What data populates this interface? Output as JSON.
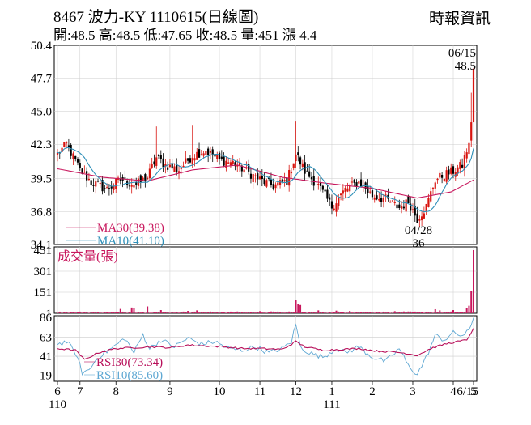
{
  "header": {
    "title": "8467  波力-KY 1110615(日線圖)",
    "ohlc": "開:48.5 高:48.5 低:47.65 收:48.5 量:451 漲 4.4",
    "source": "時報資訊"
  },
  "colors": {
    "up": "#d8140f",
    "down": "#000000",
    "ma30": "#c8175d",
    "ma10": "#2e8fb8",
    "rsi30": "#b80f5a",
    "rsi10": "#5fa8d3",
    "volume": "#c8175d",
    "volume_label": "#c8175d",
    "grid": "#cccccc"
  },
  "chart_data": [
    {
      "type": "candlestick",
      "yticks": [
        "50.4",
        "47.7",
        "45.0",
        "42.3",
        "39.5",
        "36.8",
        "34.1"
      ],
      "ylim": [
        34.1,
        50.4
      ],
      "legend": {
        "ma30": "MA30(39.38)",
        "ma10": "MA10(41.10)"
      },
      "annotations": {
        "last_date": "06/15",
        "last_price": "48.5",
        "low_date": "04/28",
        "low_price": "36"
      },
      "anchors": [
        {
          "i": 0,
          "c": 41.5
        },
        {
          "i": 4,
          "c": 42.3
        },
        {
          "i": 10,
          "c": 40.2
        },
        {
          "i": 15,
          "c": 39.2
        },
        {
          "i": 22,
          "c": 38.6
        },
        {
          "i": 28,
          "c": 39.4
        },
        {
          "i": 35,
          "c": 39.0
        },
        {
          "i": 40,
          "c": 39.6
        },
        {
          "i": 44,
          "c": 41.2
        },
        {
          "i": 48,
          "c": 40.6
        },
        {
          "i": 54,
          "c": 40.2
        },
        {
          "i": 60,
          "c": 41.4
        },
        {
          "i": 66,
          "c": 41.8
        },
        {
          "i": 72,
          "c": 41.0
        },
        {
          "i": 78,
          "c": 40.8
        },
        {
          "i": 84,
          "c": 40.1
        },
        {
          "i": 90,
          "c": 39.4
        },
        {
          "i": 96,
          "c": 38.9
        },
        {
          "i": 102,
          "c": 39.3
        },
        {
          "i": 106,
          "c": 41.5
        },
        {
          "i": 110,
          "c": 40.1
        },
        {
          "i": 116,
          "c": 38.9
        },
        {
          "i": 122,
          "c": 37.2
        },
        {
          "i": 128,
          "c": 38.6
        },
        {
          "i": 134,
          "c": 39.2
        },
        {
          "i": 140,
          "c": 38.1
        },
        {
          "i": 146,
          "c": 37.8
        },
        {
          "i": 152,
          "c": 37.1
        },
        {
          "i": 156,
          "c": 37.6
        },
        {
          "i": 160,
          "c": 36.2
        },
        {
          "i": 164,
          "c": 37.2
        },
        {
          "i": 168,
          "c": 39.4
        },
        {
          "i": 172,
          "c": 39.8
        },
        {
          "i": 176,
          "c": 40.1
        },
        {
          "i": 180,
          "c": 40.6
        },
        {
          "i": 183,
          "c": 42.4
        },
        {
          "i": 184,
          "c": 44.1
        },
        {
          "i": 185,
          "c": 48.5
        }
      ],
      "ma30_anchors": [
        {
          "i": 0,
          "c": 40.3
        },
        {
          "i": 20,
          "c": 39.6
        },
        {
          "i": 40,
          "c": 39.3
        },
        {
          "i": 60,
          "c": 40.2
        },
        {
          "i": 80,
          "c": 40.6
        },
        {
          "i": 100,
          "c": 39.6
        },
        {
          "i": 120,
          "c": 39.1
        },
        {
          "i": 140,
          "c": 38.7
        },
        {
          "i": 160,
          "c": 37.9
        },
        {
          "i": 175,
          "c": 38.4
        },
        {
          "i": 185,
          "c": 39.38
        }
      ]
    },
    {
      "type": "bar",
      "title": "成交量(張)",
      "yticks": [
        "451",
        "301",
        "151",
        "1"
      ],
      "ylim": [
        1,
        451
      ],
      "spikes": [
        {
          "i": 28,
          "v": 32
        },
        {
          "i": 33,
          "v": 42
        },
        {
          "i": 34,
          "v": 38
        },
        {
          "i": 40,
          "v": 50
        },
        {
          "i": 46,
          "v": 24
        },
        {
          "i": 58,
          "v": 18
        },
        {
          "i": 62,
          "v": 22
        },
        {
          "i": 90,
          "v": 16
        },
        {
          "i": 95,
          "v": 14
        },
        {
          "i": 106,
          "v": 95
        },
        {
          "i": 107,
          "v": 70
        },
        {
          "i": 108,
          "v": 60
        },
        {
          "i": 116,
          "v": 22
        },
        {
          "i": 124,
          "v": 20
        },
        {
          "i": 130,
          "v": 18
        },
        {
          "i": 150,
          "v": 16
        },
        {
          "i": 168,
          "v": 30
        },
        {
          "i": 170,
          "v": 22
        },
        {
          "i": 176,
          "v": 24
        },
        {
          "i": 182,
          "v": 40
        },
        {
          "i": 183,
          "v": 55
        },
        {
          "i": 184,
          "v": 160
        },
        {
          "i": 185,
          "v": 451
        }
      ]
    },
    {
      "type": "line",
      "yticks": [
        "86",
        "63",
        "41",
        "19"
      ],
      "ylim": [
        12,
        88
      ],
      "legend": {
        "rsi30": "RSI30(73.34)",
        "rsi10": "RSI10(85.60)"
      },
      "rsi10_anchors": [
        {
          "i": 0,
          "v": 55
        },
        {
          "i": 4,
          "v": 58
        },
        {
          "i": 8,
          "v": 45
        },
        {
          "i": 11,
          "v": 22
        },
        {
          "i": 14,
          "v": 25
        },
        {
          "i": 18,
          "v": 40
        },
        {
          "i": 24,
          "v": 50
        },
        {
          "i": 30,
          "v": 62
        },
        {
          "i": 34,
          "v": 45
        },
        {
          "i": 38,
          "v": 66
        },
        {
          "i": 41,
          "v": 50
        },
        {
          "i": 46,
          "v": 60
        },
        {
          "i": 52,
          "v": 52
        },
        {
          "i": 58,
          "v": 62
        },
        {
          "i": 64,
          "v": 55
        },
        {
          "i": 70,
          "v": 58
        },
        {
          "i": 76,
          "v": 50
        },
        {
          "i": 82,
          "v": 48
        },
        {
          "i": 88,
          "v": 52
        },
        {
          "i": 94,
          "v": 45
        },
        {
          "i": 100,
          "v": 50
        },
        {
          "i": 104,
          "v": 58
        },
        {
          "i": 106,
          "v": 78
        },
        {
          "i": 108,
          "v": 52
        },
        {
          "i": 112,
          "v": 45
        },
        {
          "i": 118,
          "v": 40
        },
        {
          "i": 124,
          "v": 50
        },
        {
          "i": 128,
          "v": 45
        },
        {
          "i": 134,
          "v": 52
        },
        {
          "i": 140,
          "v": 40
        },
        {
          "i": 146,
          "v": 35
        },
        {
          "i": 152,
          "v": 50
        },
        {
          "i": 156,
          "v": 30
        },
        {
          "i": 160,
          "v": 20
        },
        {
          "i": 164,
          "v": 40
        },
        {
          "i": 168,
          "v": 65
        },
        {
          "i": 172,
          "v": 60
        },
        {
          "i": 176,
          "v": 68
        },
        {
          "i": 180,
          "v": 65
        },
        {
          "i": 183,
          "v": 70
        },
        {
          "i": 185,
          "v": 85.6
        }
      ],
      "rsi30_anchors": [
        {
          "i": 0,
          "v": 50
        },
        {
          "i": 8,
          "v": 48
        },
        {
          "i": 12,
          "v": 37
        },
        {
          "i": 18,
          "v": 45
        },
        {
          "i": 26,
          "v": 50
        },
        {
          "i": 34,
          "v": 51
        },
        {
          "i": 42,
          "v": 52
        },
        {
          "i": 50,
          "v": 51
        },
        {
          "i": 58,
          "v": 54
        },
        {
          "i": 66,
          "v": 53
        },
        {
          "i": 74,
          "v": 52
        },
        {
          "i": 82,
          "v": 50
        },
        {
          "i": 90,
          "v": 50
        },
        {
          "i": 100,
          "v": 49
        },
        {
          "i": 106,
          "v": 58
        },
        {
          "i": 110,
          "v": 52
        },
        {
          "i": 118,
          "v": 48
        },
        {
          "i": 126,
          "v": 49
        },
        {
          "i": 134,
          "v": 50
        },
        {
          "i": 142,
          "v": 47
        },
        {
          "i": 150,
          "v": 46
        },
        {
          "i": 156,
          "v": 44
        },
        {
          "i": 160,
          "v": 42
        },
        {
          "i": 166,
          "v": 50
        },
        {
          "i": 172,
          "v": 55
        },
        {
          "i": 178,
          "v": 58
        },
        {
          "i": 182,
          "v": 60
        },
        {
          "i": 185,
          "v": 73.34
        }
      ]
    }
  ],
  "xaxis": {
    "labels": [
      {
        "i": 0,
        "t": "6"
      },
      {
        "i": 10,
        "t": "7"
      },
      {
        "i": 26,
        "t": "8"
      },
      {
        "i": 50,
        "t": "9"
      },
      {
        "i": 72,
        "t": "10"
      },
      {
        "i": 90,
        "t": "11"
      },
      {
        "i": 106,
        "t": "12"
      },
      {
        "i": 122,
        "t": "1"
      },
      {
        "i": 140,
        "t": "2"
      },
      {
        "i": 158,
        "t": "3"
      },
      {
        "i": 176,
        "t": "4"
      },
      {
        "i": 185,
        "t": "5"
      }
    ],
    "tail_label": "6/15",
    "year_labels": [
      "110",
      "111"
    ]
  }
}
